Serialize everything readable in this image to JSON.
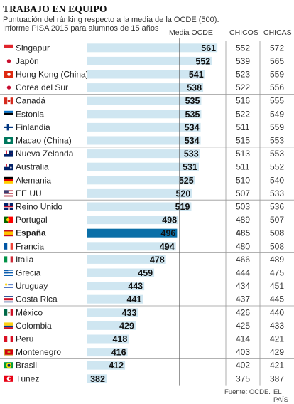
{
  "title": "TRABAJO EN EQUIPO",
  "subtitle_1": "Puntuación del ránking respecto a la media de la OCDE (500).",
  "subtitle_2": "Informe PISA 2015 para alumnos de 15  años",
  "mean_label": "Media OCDE",
  "col_boys": "CHICOS",
  "col_girls": "CHICAS",
  "source": "Fuente: OCDE.",
  "brand": "EL PAÍS",
  "colors": {
    "bar": "#cfe6f1",
    "highlight_bar": "#0a6fa8",
    "rule": "#555555",
    "separator": "#999999"
  },
  "chart_data": {
    "type": "bar",
    "orientation": "horizontal",
    "reference_line": 500,
    "highlight": "España",
    "groups_end_after": [
      "Corea del Sur",
      "Macao (China)",
      "EE UU",
      "Francia",
      "Costa Rica",
      "Montenegro"
    ],
    "rows": [
      {
        "country": "Singapur",
        "flag": "singapore-flag",
        "score": 561,
        "boys": 552,
        "girls": 572
      },
      {
        "country": "Japón",
        "flag": "japan-flag",
        "score": 552,
        "boys": 539,
        "girls": 565
      },
      {
        "country": "Hong Kong (China)",
        "flag": "hong-kong-flag",
        "score": 541,
        "boys": 523,
        "girls": 559
      },
      {
        "country": "Corea del Sur",
        "flag": "south-korea-flag",
        "score": 538,
        "boys": 522,
        "girls": 556
      },
      {
        "country": "Canadá",
        "flag": "canada-flag",
        "score": 535,
        "boys": 516,
        "girls": 555
      },
      {
        "country": "Estonia",
        "flag": "estonia-flag",
        "score": 535,
        "boys": 522,
        "girls": 549
      },
      {
        "country": "Finlandia",
        "flag": "finland-flag",
        "score": 534,
        "boys": 511,
        "girls": 559
      },
      {
        "country": "Macao (China)",
        "flag": "macao-flag",
        "score": 534,
        "boys": 515,
        "girls": 553
      },
      {
        "country": "Nueva Zelanda",
        "flag": "new-zealand-flag",
        "score": 533,
        "boys": 513,
        "girls": 553
      },
      {
        "country": "Australia",
        "flag": "australia-flag",
        "score": 531,
        "boys": 511,
        "girls": 552
      },
      {
        "country": "Alemania",
        "flag": "germany-flag",
        "score": 525,
        "boys": 510,
        "girls": 540
      },
      {
        "country": "EE UU",
        "flag": "usa-flag",
        "score": 520,
        "boys": 507,
        "girls": 533
      },
      {
        "country": "Reino Unido",
        "flag": "uk-flag",
        "score": 519,
        "boys": 503,
        "girls": 536
      },
      {
        "country": "Portugal",
        "flag": "portugal-flag",
        "score": 498,
        "boys": 489,
        "girls": 507
      },
      {
        "country": "España",
        "flag": "spain-flag",
        "score": 496,
        "boys": 485,
        "girls": 508
      },
      {
        "country": "Francia",
        "flag": "france-flag",
        "score": 494,
        "boys": 480,
        "girls": 508
      },
      {
        "country": "Italia",
        "flag": "italy-flag",
        "score": 478,
        "boys": 466,
        "girls": 489
      },
      {
        "country": "Grecia",
        "flag": "greece-flag",
        "score": 459,
        "boys": 444,
        "girls": 475
      },
      {
        "country": "Uruguay",
        "flag": "uruguay-flag",
        "score": 443,
        "boys": 434,
        "girls": 451
      },
      {
        "country": "Costa Rica",
        "flag": "costa-rica-flag",
        "score": 441,
        "boys": 437,
        "girls": 445
      },
      {
        "country": "México",
        "flag": "mexico-flag",
        "score": 433,
        "boys": 426,
        "girls": 440
      },
      {
        "country": "Colombia",
        "flag": "colombia-flag",
        "score": 429,
        "boys": 425,
        "girls": 433
      },
      {
        "country": "Perú",
        "flag": "peru-flag",
        "score": 418,
        "boys": 414,
        "girls": 421
      },
      {
        "country": "Montenegro",
        "flag": "montenegro-flag",
        "score": 416,
        "boys": 403,
        "girls": 429
      },
      {
        "country": "Brasil",
        "flag": "brazil-flag",
        "score": 412,
        "boys": 402,
        "girls": 421
      },
      {
        "country": "Túnez",
        "flag": "tunisia-flag",
        "score": 382,
        "boys": 375,
        "girls": 387
      }
    ]
  }
}
